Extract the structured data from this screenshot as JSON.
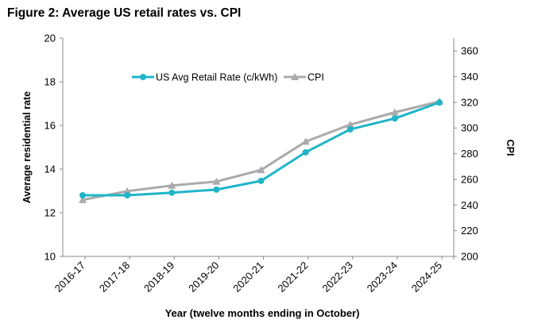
{
  "chart_data": {
    "type": "line",
    "title": "Figure 2: Average US retail rates vs. CPI",
    "xlabel": "Year (twelve months ending in October)",
    "ylabel": "Average residential rate",
    "y2label": "CPI",
    "categories": [
      "2016-17",
      "2017-18",
      "2018-19",
      "2019-20",
      "2020-21",
      "2021-22",
      "2022-23",
      "2023-24",
      "2024-25"
    ],
    "ylim": [
      10,
      20
    ],
    "yticks": [
      10,
      12,
      14,
      16,
      18,
      20
    ],
    "y2lim": [
      200,
      370
    ],
    "y2ticks": [
      200,
      220,
      240,
      260,
      280,
      300,
      320,
      340,
      360
    ],
    "legend_position": "top-left",
    "series": [
      {
        "name": "US Avg Retail Rate (c/kWh)",
        "axis": "left",
        "color": "#1fb5c9",
        "marker": "circle",
        "values": [
          12.8,
          12.8,
          12.92,
          13.06,
          13.46,
          14.77,
          15.82,
          16.32,
          17.05
        ]
      },
      {
        "name": "CPI",
        "axis": "right",
        "color": "#aaaaaa",
        "marker": "triangle",
        "values": [
          244,
          250.8,
          255.2,
          258.3,
          267.3,
          289.4,
          302.6,
          312.2,
          320.7
        ]
      }
    ]
  }
}
